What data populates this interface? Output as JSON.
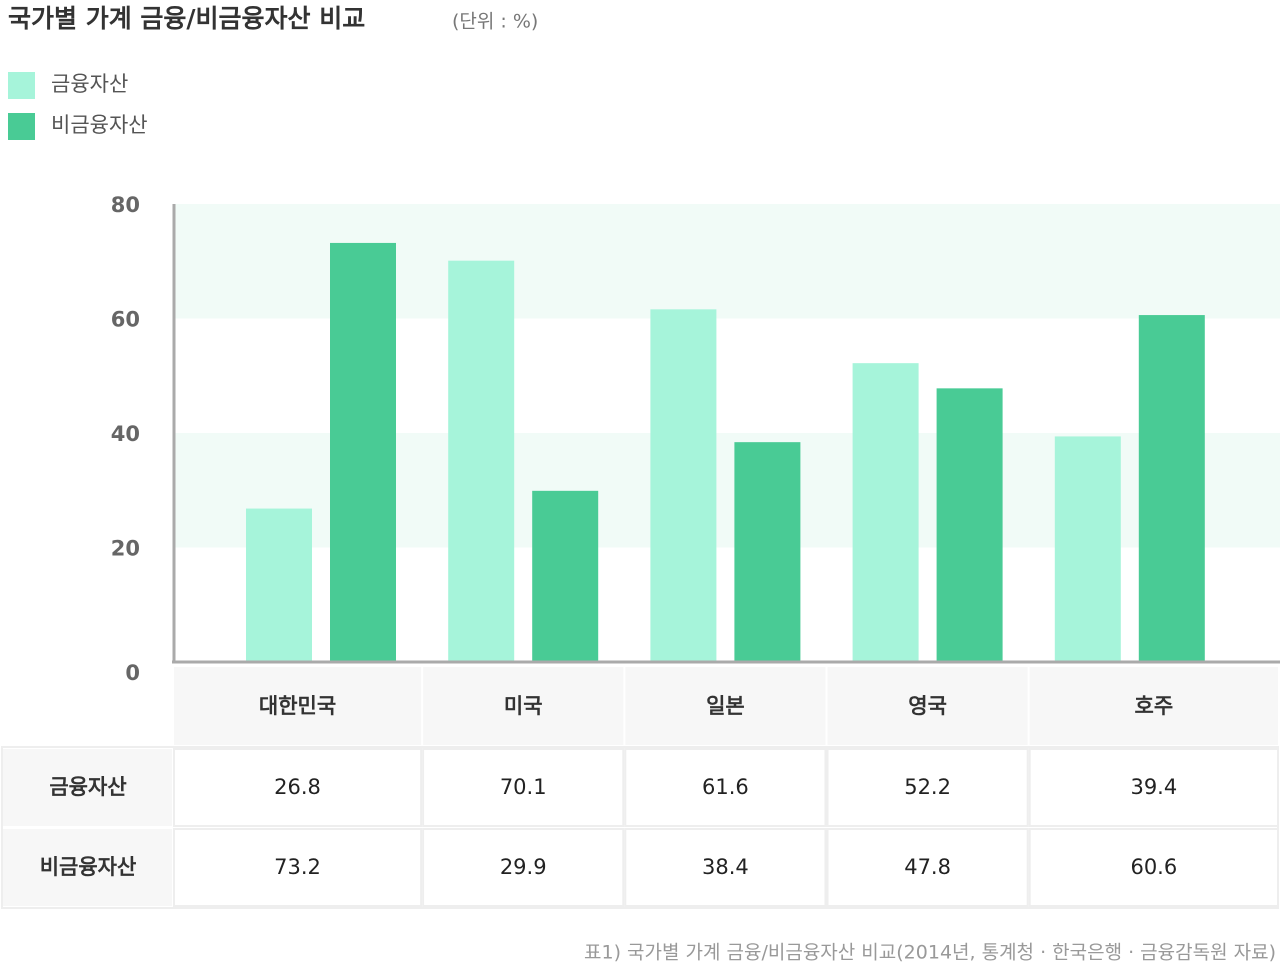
{
  "chart_data": {
    "type": "bar",
    "title": "국가별 가계 금융/비금융자산 비교",
    "unit": "(단위 : %)",
    "categories": [
      "대한민국",
      "미국",
      "일본",
      "영국",
      "호주"
    ],
    "series": [
      {
        "name": "금융자산",
        "color": "#a6f4da",
        "values": [
          26.8,
          70.1,
          61.6,
          52.2,
          39.4
        ]
      },
      {
        "name": "비금융자산",
        "color": "#49cb95",
        "values": [
          73.2,
          29.9,
          38.4,
          47.8,
          60.6
        ]
      }
    ],
    "ylim": [
      0,
      80
    ],
    "yticks": [
      0,
      20,
      40,
      60,
      80
    ],
    "caption": "표1) 국가별 가계 금융/비금융자산 비교(2014년, 통계청 · 한국은행 · 금융감독원 자료)"
  }
}
